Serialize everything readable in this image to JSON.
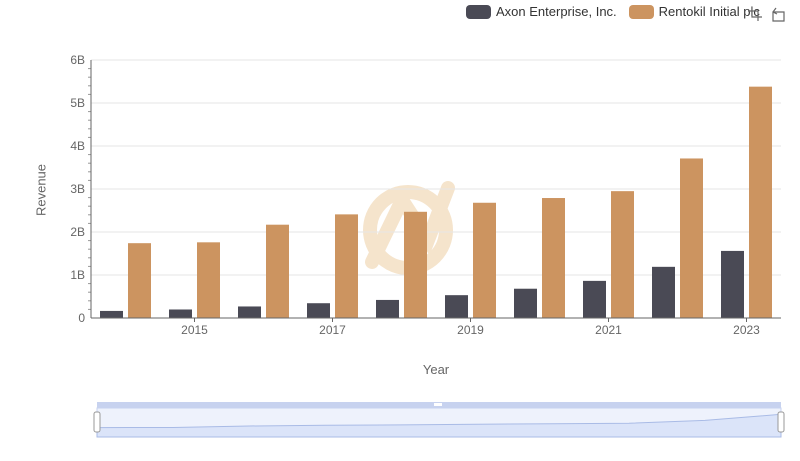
{
  "colors": {
    "axon": "#4a4a55",
    "rentokil": "#cc9460",
    "grid": "#e6e6e6",
    "axis": "#666666",
    "watermark": "#f5e4cc",
    "zoom_fill": "#dbe4f9",
    "zoom_border": "#c7d2ef"
  },
  "toolbar": {
    "icons": [
      "zoom-select-icon",
      "zoom-reset-icon"
    ]
  },
  "chart_data": {
    "type": "bar",
    "xlabel": "Year",
    "ylabel": "Revenue",
    "ylim": [
      0,
      6000000000
    ],
    "yticks": [
      {
        "value": 0,
        "label": "0"
      },
      {
        "value": 1000000000,
        "label": "1B"
      },
      {
        "value": 2000000000,
        "label": "2B"
      },
      {
        "value": 3000000000,
        "label": "3B"
      },
      {
        "value": 4000000000,
        "label": "4B"
      },
      {
        "value": 5000000000,
        "label": "5B"
      },
      {
        "value": 6000000000,
        "label": "6B"
      }
    ],
    "categories": [
      2014,
      2015,
      2016,
      2017,
      2018,
      2019,
      2020,
      2021,
      2022,
      2023
    ],
    "xtick_labels": [
      {
        "year": 2015,
        "label": "2015"
      },
      {
        "year": 2017,
        "label": "2017"
      },
      {
        "year": 2019,
        "label": "2019"
      },
      {
        "year": 2021,
        "label": "2021"
      },
      {
        "year": 2023,
        "label": "2023"
      }
    ],
    "legend_position": "top-right",
    "grid": true,
    "series": [
      {
        "name": "Axon Enterprise, Inc.",
        "color": "#4a4a55",
        "values": [
          164500000,
          197900000,
          268200000,
          343800000,
          420100000,
          530900000,
          681000000,
          863400000,
          1190000000,
          1560000000
        ]
      },
      {
        "name": "Rentokil Initial plc",
        "color": "#cc9460",
        "values": [
          1740000000,
          1760000000,
          2170000000,
          2410000000,
          2470000000,
          2680000000,
          2790000000,
          2950000000,
          3710000000,
          5380000000
        ]
      }
    ]
  }
}
